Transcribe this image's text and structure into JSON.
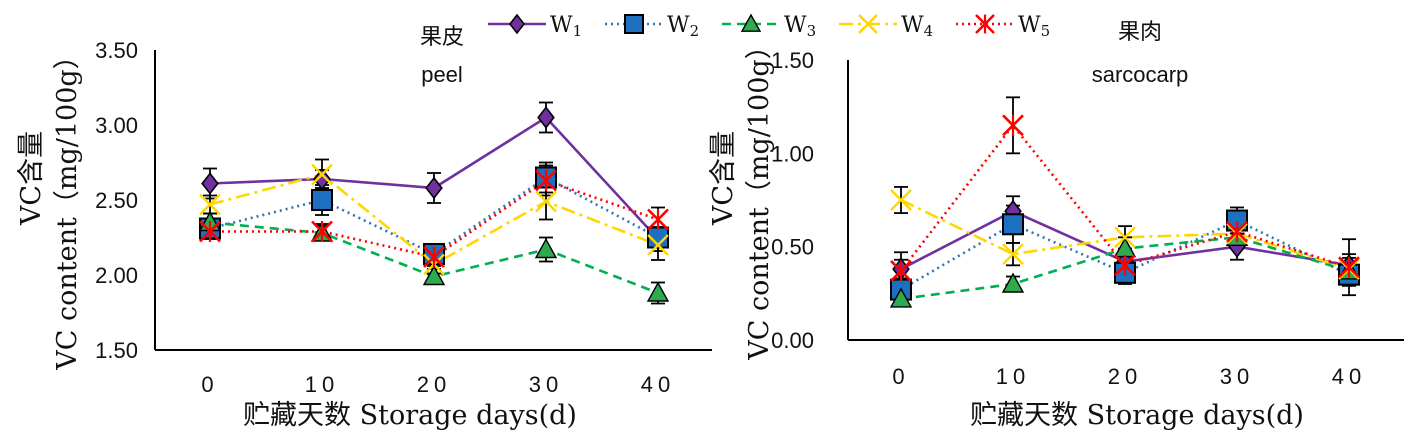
{
  "chart_data": [
    {
      "type": "line",
      "title_cn": "果皮",
      "title_en": "peel",
      "xlabel": "贮藏天数 Storage days(d)",
      "ylabel_cn": "VC含量",
      "ylabel_en": "VC content（mg/100g）",
      "x": [
        0,
        10,
        20,
        30,
        40
      ],
      "x_tick_labels": [
        "0",
        "10",
        "20",
        "30",
        "40"
      ],
      "ylim": [
        1.5,
        3.5
      ],
      "y_tick_labels": [
        "1.50",
        "2.00",
        "2.50",
        "3.00",
        "3.50"
      ],
      "series": [
        {
          "name": "W1",
          "values": [
            2.61,
            2.64,
            2.58,
            3.05,
            2.24
          ],
          "errors": [
            0.1,
            0.06,
            0.1,
            0.1,
            0.08
          ]
        },
        {
          "name": "W2",
          "values": [
            2.31,
            2.5,
            2.14,
            2.65,
            2.25
          ],
          "errors": [
            0.06,
            0.1,
            0.06,
            0.1,
            0.06
          ]
        },
        {
          "name": "W3",
          "values": [
            2.35,
            2.28,
            1.99,
            2.17,
            1.88
          ],
          "errors": [
            0.06,
            0.05,
            0.05,
            0.08,
            0.07
          ]
        },
        {
          "name": "W4",
          "values": [
            2.47,
            2.67,
            2.07,
            2.49,
            2.2
          ],
          "errors": [
            0.06,
            0.1,
            0.06,
            0.12,
            0.1
          ]
        },
        {
          "name": "W5",
          "values": [
            2.29,
            2.29,
            2.12,
            2.63,
            2.37
          ],
          "errors": [
            0.05,
            0.05,
            0.06,
            0.1,
            0.08
          ]
        }
      ]
    },
    {
      "type": "line",
      "title_cn": "果肉",
      "title_en": "sarcocarp",
      "xlabel": "贮藏天数 Storage days(d)",
      "ylabel_cn": "VC含量",
      "ylabel_en": "VC content（mg/100g）",
      "x": [
        0,
        10,
        20,
        30,
        40
      ],
      "x_tick_labels": [
        "0",
        "10",
        "20",
        "30",
        "40"
      ],
      "ylim": [
        0.0,
        1.5
      ],
      "y_tick_labels": [
        "0.00",
        "0.50",
        "1.00",
        "1.50"
      ],
      "series": [
        {
          "name": "W1",
          "values": [
            0.38,
            0.69,
            0.42,
            0.5,
            0.4
          ],
          "errors": [
            0.05,
            0.08,
            0.06,
            0.07,
            0.06
          ]
        },
        {
          "name": "W2",
          "values": [
            0.27,
            0.62,
            0.36,
            0.64,
            0.35
          ],
          "errors": [
            0.05,
            0.1,
            0.06,
            0.07,
            0.06
          ]
        },
        {
          "name": "W3",
          "values": [
            0.22,
            0.3,
            0.49,
            0.55,
            0.37
          ],
          "errors": [
            0.04,
            0.04,
            0.06,
            0.06,
            0.05
          ]
        },
        {
          "name": "W4",
          "values": [
            0.75,
            0.46,
            0.55,
            0.57,
            0.38
          ],
          "errors": [
            0.07,
            0.06,
            0.06,
            0.06,
            0.06
          ]
        },
        {
          "name": "W5",
          "values": [
            0.37,
            1.15,
            0.4,
            0.58,
            0.39
          ],
          "errors": [
            0.1,
            0.15,
            0.06,
            0.06,
            0.15
          ]
        }
      ]
    }
  ],
  "legend": {
    "entries": [
      {
        "base": "W",
        "sub": "1"
      },
      {
        "base": "W",
        "sub": "2"
      },
      {
        "base": "W",
        "sub": "3"
      },
      {
        "base": "W",
        "sub": "4"
      },
      {
        "base": "W",
        "sub": "5"
      }
    ]
  },
  "colors": {
    "W1": "#7030A0",
    "W2": "#2E75B6",
    "W3": "#00B050",
    "W4": "#FFD700",
    "W5": "#FF0000",
    "W2_marker": "#1F6FC0",
    "W3_marker": "#2EAA4F",
    "axis": "#000000"
  },
  "markers": {
    "W1": "diamond",
    "W2": "square",
    "W3": "triangle",
    "W4": "x",
    "W5": "star"
  },
  "line_styles": {
    "W1": "solid",
    "W2": "dotted",
    "W3": "dashed",
    "W4": "dash-dot",
    "W5": "dotted"
  }
}
